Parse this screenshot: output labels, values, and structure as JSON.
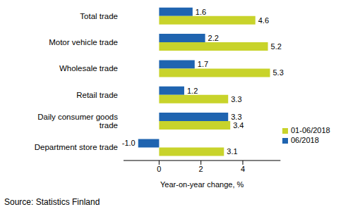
{
  "chart_data": {
    "type": "bar",
    "orientation": "horizontal",
    "categories": [
      "Total trade",
      "Motor vehicle trade",
      "Wholesale trade",
      "Retail trade",
      "Daily consumer goods trade",
      "Department store trade"
    ],
    "series": [
      {
        "name": "06/2018",
        "color": "#1f64b0",
        "values": [
          1.6,
          2.2,
          1.7,
          1.2,
          3.3,
          -1.0
        ],
        "value_labels": [
          "1.6",
          "2.2",
          "1.7",
          "1.2",
          "3.3",
          "-1.0"
        ]
      },
      {
        "name": "01-06/2018",
        "color": "#c8d32b",
        "values": [
          4.6,
          5.2,
          5.3,
          3.3,
          3.4,
          3.1
        ],
        "value_labels": [
          "4.6",
          "5.2",
          "5.3",
          "3.3",
          "3.4",
          "3.1"
        ]
      }
    ],
    "xlabel": "Year-on-year change, %",
    "xlim": [
      -1.7,
      5.8
    ],
    "xticks": [
      0,
      2,
      4
    ],
    "grid": false,
    "legend": "lower right",
    "data_labels": true,
    "source": "Source: Statistics Finland"
  }
}
